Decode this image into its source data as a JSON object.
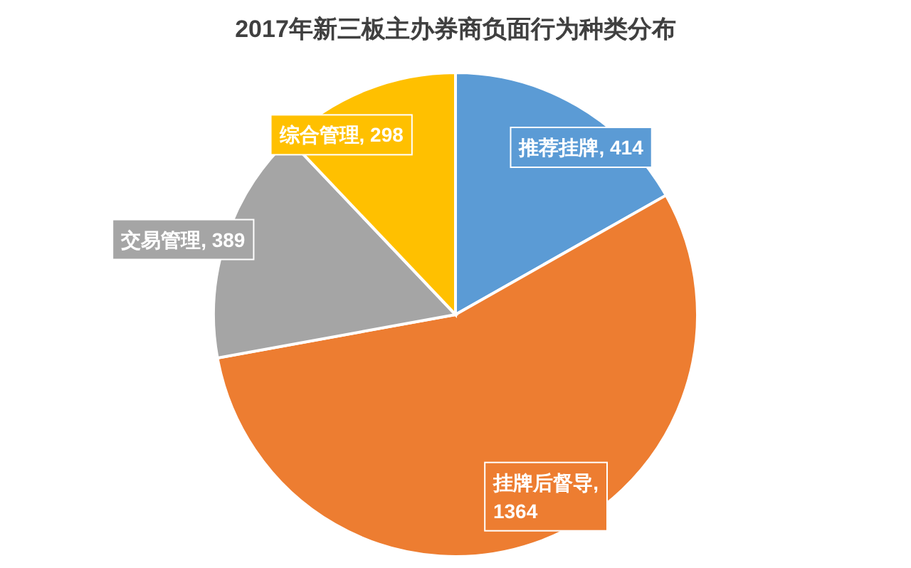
{
  "chart_data": {
    "type": "pie",
    "title": "2017年新三板主办券商负面行为种类分布",
    "categories": [
      "推荐挂牌",
      "挂牌后督导",
      "交易管理",
      "综合管理"
    ],
    "values": [
      414,
      1364,
      389,
      298
    ],
    "colors": [
      "#5b9bd5",
      "#ed7d31",
      "#a5a5a5",
      "#ffc000"
    ],
    "value_labels": [
      ", 414",
      ", 1364",
      ", 389",
      ", 298"
    ]
  }
}
